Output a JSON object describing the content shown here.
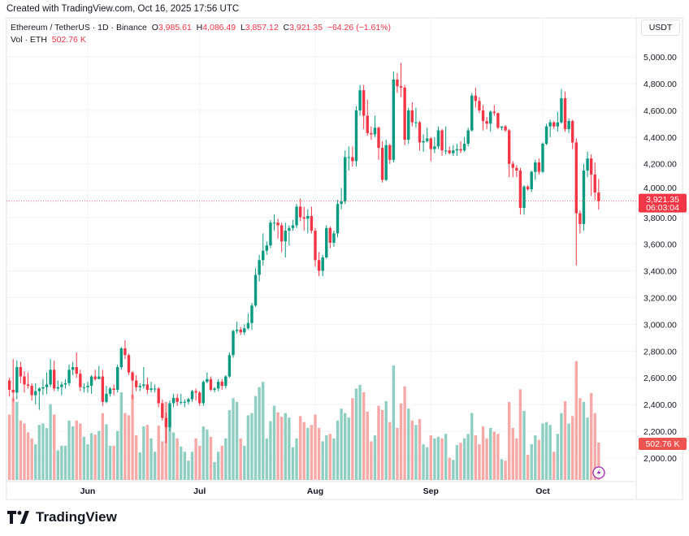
{
  "header": {
    "created": "Created with TradingView.com, Oct 16, 2025 17:56 UTC"
  },
  "legend": {
    "symbol": "Ethereum / TetherUS · 1D · Binance",
    "o_label": "O",
    "o": "3,985.61",
    "h_label": "H",
    "h": "4,086.49",
    "l_label": "L",
    "l": "3,857.12",
    "c_label": "C",
    "c": "3,921.35",
    "change": "−64.26 (−1.61%)",
    "vol_label": "Vol · ETH",
    "vol": "502.76 K"
  },
  "currency": "USDT",
  "last_price_label": "3,921.35",
  "countdown": "06:03:04",
  "last_volume_label": "502.76 K",
  "brand": "TradingView",
  "colors": {
    "up": "#089981",
    "down": "#f23645",
    "vol_up": "#8fcfc3",
    "vol_down": "#f7a9a7",
    "alert": "#9c27b0"
  },
  "icons": {
    "alert": "lightning-icon",
    "logo": "tradingview-logo"
  },
  "chart_data": {
    "type": "candlestick",
    "title": "Ethereum / TetherUS · 1D · Binance",
    "price_ticks": [
      "2,000.00",
      "2,200.00",
      "2,400.00",
      "2,600.00",
      "2,800.00",
      "3,000.00",
      "3,200.00",
      "3,400.00",
      "3,600.00",
      "3,800.00",
      "4,000.00",
      "4,200.00",
      "4,400.00",
      "4,600.00",
      "4,800.00",
      "5,000.00"
    ],
    "price_tick_values": [
      2000,
      2200,
      2400,
      2600,
      2800,
      3000,
      3200,
      3400,
      3600,
      3800,
      4000,
      4200,
      4400,
      4600,
      4800,
      5000
    ],
    "month_ticks": [
      {
        "label": "Jun",
        "date": "Jun 1"
      },
      {
        "label": "Jul",
        "date": "Jul 1"
      },
      {
        "label": "Aug",
        "date": "Aug 1"
      },
      {
        "label": "Sep",
        "date": "Sep 1"
      },
      {
        "label": "Oct",
        "date": "Oct 1"
      }
    ],
    "ylim": [
      2000,
      5000
    ],
    "last_price": 3921.35,
    "grid": true,
    "columns": [
      "date",
      "open",
      "high",
      "low",
      "close",
      "volume_k"
    ],
    "rows": [
      [
        "May 11",
        2580,
        2600,
        2460,
        2510,
        880
      ],
      [
        "May 12",
        2510,
        2740,
        2420,
        2490,
        1100
      ],
      [
        "May 13",
        2490,
        2730,
        2440,
        2680,
        1050
      ],
      [
        "May 14",
        2680,
        2720,
        2560,
        2610,
        800
      ],
      [
        "May 15",
        2610,
        2650,
        2490,
        2550,
        760
      ],
      [
        "May 16",
        2550,
        2640,
        2520,
        2540,
        640
      ],
      [
        "May 17",
        2540,
        2560,
        2430,
        2470,
        560
      ],
      [
        "May 18",
        2470,
        2560,
        2400,
        2500,
        480
      ],
      [
        "May 19",
        2500,
        2530,
        2360,
        2520,
        740
      ],
      [
        "May 20",
        2520,
        2590,
        2470,
        2530,
        760
      ],
      [
        "May 21",
        2530,
        2640,
        2480,
        2550,
        700
      ],
      [
        "May 22",
        2550,
        2740,
        2530,
        2660,
        1020
      ],
      [
        "May 23",
        2660,
        2730,
        2500,
        2520,
        880
      ],
      [
        "May 24",
        2520,
        2580,
        2500,
        2530,
        400
      ],
      [
        "May 25",
        2530,
        2570,
        2470,
        2550,
        460
      ],
      [
        "May 26",
        2550,
        2590,
        2520,
        2560,
        460
      ],
      [
        "May 27",
        2560,
        2700,
        2540,
        2660,
        800
      ],
      [
        "May 28",
        2660,
        2720,
        2620,
        2680,
        720
      ],
      [
        "May 29",
        2680,
        2790,
        2600,
        2630,
        800
      ],
      [
        "May 30",
        2630,
        2660,
        2500,
        2530,
        760
      ],
      [
        "May 31",
        2530,
        2560,
        2490,
        2530,
        580
      ],
      [
        "Jun 1",
        2530,
        2570,
        2490,
        2540,
        480
      ],
      [
        "Jun 2",
        2540,
        2620,
        2480,
        2610,
        630
      ],
      [
        "Jun 3",
        2610,
        2660,
        2580,
        2590,
        610
      ],
      [
        "Jun 4",
        2590,
        2690,
        2590,
        2610,
        660
      ],
      [
        "Jun 5",
        2610,
        2660,
        2390,
        2420,
        900
      ],
      [
        "Jun 6",
        2420,
        2540,
        2410,
        2480,
        750
      ],
      [
        "Jun 7",
        2480,
        2530,
        2460,
        2520,
        460
      ],
      [
        "Jun 8",
        2520,
        2550,
        2470,
        2510,
        460
      ],
      [
        "Jun 9",
        2510,
        2700,
        2490,
        2680,
        660
      ],
      [
        "Jun 10",
        2680,
        2830,
        2660,
        2820,
        1180
      ],
      [
        "Jun 11",
        2820,
        2880,
        2740,
        2770,
        900
      ],
      [
        "Jun 12",
        2770,
        2780,
        2620,
        2640,
        870
      ],
      [
        "Jun 13",
        2640,
        2650,
        2440,
        2580,
        1150
      ],
      [
        "Jun 14",
        2580,
        2620,
        2500,
        2530,
        600
      ],
      [
        "Jun 15",
        2530,
        2560,
        2500,
        2540,
        370
      ],
      [
        "Jun 16",
        2540,
        2680,
        2520,
        2550,
        720
      ],
      [
        "Jun 17",
        2550,
        2600,
        2480,
        2510,
        740
      ],
      [
        "Jun 18",
        2510,
        2570,
        2490,
        2520,
        560
      ],
      [
        "Jun 19",
        2520,
        2550,
        2490,
        2520,
        380
      ],
      [
        "Jun 20",
        2520,
        2530,
        2380,
        2410,
        730
      ],
      [
        "Jun 21",
        2410,
        2440,
        2280,
        2300,
        520
      ],
      [
        "Jun 22",
        2300,
        2340,
        2110,
        2230,
        1050
      ],
      [
        "Jun 23",
        2230,
        2430,
        2200,
        2410,
        1020
      ],
      [
        "Jun 24",
        2410,
        2480,
        2380,
        2450,
        640
      ],
      [
        "Jun 25",
        2450,
        2480,
        2390,
        2420,
        560
      ],
      [
        "Jun 26",
        2420,
        2480,
        2400,
        2420,
        450
      ],
      [
        "Jun 27",
        2420,
        2440,
        2380,
        2420,
        380
      ],
      [
        "Jun 28",
        2420,
        2450,
        2400,
        2440,
        260
      ],
      [
        "Jun 29",
        2440,
        2510,
        2420,
        2500,
        380
      ],
      [
        "Jun 30",
        2500,
        2520,
        2430,
        2490,
        560
      ],
      [
        "Jul 1",
        2490,
        2500,
        2390,
        2410,
        460
      ],
      [
        "Jul 2",
        2410,
        2580,
        2390,
        2570,
        720
      ],
      [
        "Jul 3",
        2570,
        2640,
        2560,
        2590,
        680
      ],
      [
        "Jul 4",
        2590,
        2610,
        2500,
        2510,
        580
      ],
      [
        "Jul 5",
        2510,
        2530,
        2490,
        2520,
        240
      ],
      [
        "Jul 6",
        2520,
        2590,
        2500,
        2570,
        380
      ],
      [
        "Jul 7",
        2570,
        2590,
        2510,
        2540,
        460
      ],
      [
        "Jul 8",
        2540,
        2620,
        2520,
        2610,
        560
      ],
      [
        "Jul 9",
        2610,
        2790,
        2600,
        2770,
        940
      ],
      [
        "Jul 10",
        2770,
        2960,
        2750,
        2950,
        1100
      ],
      [
        "Jul 11",
        2950,
        3020,
        2930,
        2960,
        1050
      ],
      [
        "Jul 12",
        2960,
        2980,
        2920,
        2940,
        560
      ],
      [
        "Jul 13",
        2940,
        3000,
        2920,
        2970,
        460
      ],
      [
        "Jul 14",
        2970,
        3080,
        2960,
        3010,
        870
      ],
      [
        "Jul 15",
        3010,
        3160,
        2960,
        3140,
        900
      ],
      [
        "Jul 16",
        3140,
        3420,
        3130,
        3370,
        1130
      ],
      [
        "Jul 17",
        3370,
        3520,
        3320,
        3480,
        1250
      ],
      [
        "Jul 18",
        3480,
        3680,
        3440,
        3550,
        1320
      ],
      [
        "Jul 19",
        3550,
        3620,
        3520,
        3590,
        560
      ],
      [
        "Jul 20",
        3590,
        3780,
        3570,
        3760,
        790
      ],
      [
        "Jul 21",
        3760,
        3820,
        3700,
        3760,
        1000
      ],
      [
        "Jul 22",
        3760,
        3790,
        3640,
        3740,
        910
      ],
      [
        "Jul 23",
        3740,
        3760,
        3540,
        3620,
        850
      ],
      [
        "Jul 24",
        3620,
        3760,
        3500,
        3700,
        900
      ],
      [
        "Jul 25",
        3700,
        3740,
        3590,
        3720,
        840
      ],
      [
        "Jul 26",
        3720,
        3780,
        3700,
        3740,
        440
      ],
      [
        "Jul 27",
        3740,
        3900,
        3720,
        3880,
        560
      ],
      [
        "Jul 28",
        3880,
        3940,
        3770,
        3800,
        860
      ],
      [
        "Jul 29",
        3800,
        3880,
        3700,
        3790,
        780
      ],
      [
        "Jul 30",
        3790,
        3860,
        3680,
        3810,
        700
      ],
      [
        "Jul 31",
        3810,
        3880,
        3680,
        3700,
        740
      ],
      [
        "Aug 1",
        3700,
        3720,
        3430,
        3480,
        880
      ],
      [
        "Aug 2",
        3480,
        3540,
        3360,
        3400,
        700
      ],
      [
        "Aug 3",
        3400,
        3520,
        3360,
        3500,
        520
      ],
      [
        "Aug 4",
        3500,
        3740,
        3490,
        3720,
        600
      ],
      [
        "Aug 5",
        3720,
        3730,
        3570,
        3610,
        620
      ],
      [
        "Aug 6",
        3610,
        3700,
        3580,
        3680,
        560
      ],
      [
        "Aug 7",
        3680,
        3930,
        3650,
        3900,
        800
      ],
      [
        "Aug 8",
        3900,
        4020,
        3860,
        3920,
        960
      ],
      [
        "Aug 9",
        3920,
        4300,
        3900,
        4250,
        900
      ],
      [
        "Aug 10",
        4250,
        4330,
        4150,
        4250,
        840
      ],
      [
        "Aug 11",
        4250,
        4330,
        4180,
        4220,
        1100
      ],
      [
        "Aug 12",
        4220,
        4630,
        4180,
        4600,
        1230
      ],
      [
        "Aug 13",
        4600,
        4790,
        4560,
        4750,
        1280
      ],
      [
        "Aug 14",
        4750,
        4790,
        4460,
        4560,
        1180
      ],
      [
        "Aug 15",
        4560,
        4680,
        4410,
        4430,
        920
      ],
      [
        "Aug 16",
        4430,
        4480,
        4380,
        4420,
        520
      ],
      [
        "Aug 17",
        4420,
        4560,
        4400,
        4470,
        600
      ],
      [
        "Aug 18",
        4470,
        4480,
        4230,
        4320,
        1000
      ],
      [
        "Aug 19",
        4320,
        4370,
        4060,
        4080,
        940
      ],
      [
        "Aug 20",
        4080,
        4380,
        4070,
        4340,
        1060
      ],
      [
        "Aug 21",
        4340,
        4350,
        4200,
        4230,
        780
      ],
      [
        "Aug 22",
        4230,
        4890,
        4210,
        4830,
        1540
      ],
      [
        "Aug 23",
        4830,
        4880,
        4730,
        4780,
        700
      ],
      [
        "Aug 24",
        4780,
        4955,
        4700,
        4770,
        1030
      ],
      [
        "Aug 25",
        4770,
        4790,
        4340,
        4380,
        1260
      ],
      [
        "Aug 26",
        4380,
        4620,
        4350,
        4600,
        960
      ],
      [
        "Aug 27",
        4600,
        4660,
        4480,
        4510,
        800
      ],
      [
        "Aug 28",
        4510,
        4620,
        4470,
        4510,
        740
      ],
      [
        "Aug 29",
        4510,
        4520,
        4300,
        4360,
        820
      ],
      [
        "Aug 30",
        4360,
        4420,
        4290,
        4370,
        480
      ],
      [
        "Aug 31",
        4370,
        4470,
        4360,
        4390,
        440
      ],
      [
        "Sep 1",
        4390,
        4400,
        4220,
        4310,
        600
      ],
      [
        "Sep 2",
        4310,
        4400,
        4280,
        4330,
        560
      ],
      [
        "Sep 3",
        4330,
        4480,
        4310,
        4450,
        580
      ],
      [
        "Sep 4",
        4450,
        4460,
        4260,
        4300,
        560
      ],
      [
        "Sep 5",
        4300,
        4480,
        4270,
        4300,
        620
      ],
      [
        "Sep 6",
        4300,
        4330,
        4270,
        4280,
        300
      ],
      [
        "Sep 7",
        4280,
        4340,
        4260,
        4300,
        270
      ],
      [
        "Sep 8",
        4300,
        4350,
        4260,
        4310,
        470
      ],
      [
        "Sep 9",
        4310,
        4370,
        4280,
        4300,
        500
      ],
      [
        "Sep 10",
        4300,
        4400,
        4290,
        4350,
        560
      ],
      [
        "Sep 11",
        4350,
        4470,
        4330,
        4450,
        620
      ],
      [
        "Sep 12",
        4450,
        4730,
        4440,
        4710,
        900
      ],
      [
        "Sep 13",
        4710,
        4770,
        4620,
        4670,
        600
      ],
      [
        "Sep 14",
        4670,
        4700,
        4580,
        4600,
        480
      ],
      [
        "Sep 15",
        4600,
        4640,
        4450,
        4520,
        720
      ],
      [
        "Sep 16",
        4520,
        4550,
        4460,
        4500,
        560
      ],
      [
        "Sep 17",
        4500,
        4600,
        4440,
        4590,
        700
      ],
      [
        "Sep 18",
        4590,
        4640,
        4560,
        4580,
        650
      ],
      [
        "Sep 19",
        4580,
        4580,
        4460,
        4470,
        620
      ],
      [
        "Sep 20",
        4470,
        4480,
        4450,
        4480,
        280
      ],
      [
        "Sep 21",
        4480,
        4490,
        4440,
        4450,
        260
      ],
      [
        "Sep 22",
        4450,
        4460,
        4100,
        4200,
        1050
      ],
      [
        "Sep 23",
        4200,
        4220,
        4100,
        4170,
        700
      ],
      [
        "Sep 24",
        4170,
        4190,
        4100,
        4150,
        560
      ],
      [
        "Sep 25",
        4150,
        4170,
        3820,
        3870,
        1220
      ],
      [
        "Sep 26",
        3870,
        4040,
        3820,
        4030,
        930
      ],
      [
        "Sep 27",
        4030,
        4040,
        4000,
        4010,
        340
      ],
      [
        "Sep 28",
        4010,
        4150,
        3990,
        4140,
        480
      ],
      [
        "Sep 29",
        4140,
        4230,
        4080,
        4210,
        600
      ],
      [
        "Sep 30",
        4210,
        4240,
        4120,
        4140,
        540
      ],
      [
        "Oct 1",
        4140,
        4360,
        4130,
        4350,
        760
      ],
      [
        "Oct 2",
        4350,
        4500,
        4340,
        4480,
        780
      ],
      [
        "Oct 3",
        4480,
        4530,
        4400,
        4510,
        740
      ],
      [
        "Oct 4",
        4510,
        4520,
        4460,
        4480,
        380
      ],
      [
        "Oct 5",
        4480,
        4590,
        4440,
        4510,
        620
      ],
      [
        "Oct 6",
        4510,
        4760,
        4500,
        4690,
        900
      ],
      [
        "Oct 7",
        4690,
        4740,
        4440,
        4460,
        1060
      ],
      [
        "Oct 8",
        4460,
        4540,
        4430,
        4520,
        760
      ],
      [
        "Oct 9",
        4520,
        4530,
        4310,
        4360,
        860
      ],
      [
        "Oct 10",
        4360,
        4390,
        3440,
        3830,
        1600
      ],
      [
        "Oct 11",
        3830,
        3850,
        3680,
        3750,
        1100
      ],
      [
        "Oct 12",
        3750,
        4200,
        3700,
        4150,
        1050
      ],
      [
        "Oct 13",
        4150,
        4290,
        4100,
        4240,
        840
      ],
      [
        "Oct 14",
        4240,
        4270,
        3960,
        4120,
        1170
      ],
      [
        "Oct 15",
        4120,
        4210,
        3930,
        3985.61,
        900
      ],
      [
        "Oct 16",
        3985.61,
        4086.49,
        3857.12,
        3921.35,
        502.76
      ]
    ]
  }
}
